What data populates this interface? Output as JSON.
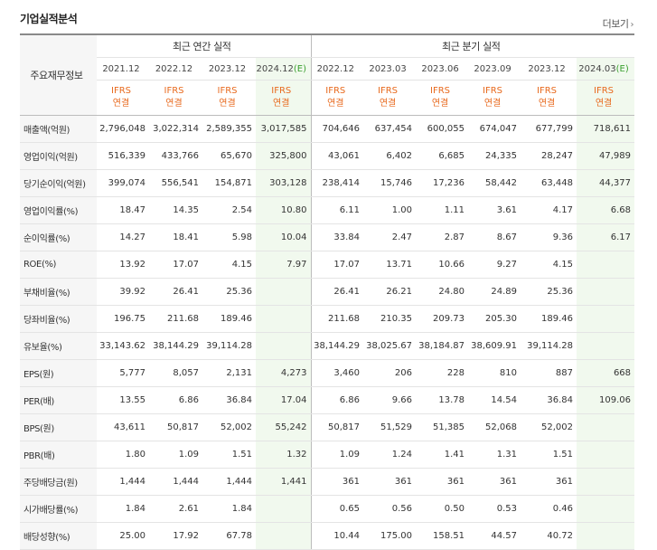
{
  "title": "기업실적분석",
  "more_label": "더보기",
  "header": {
    "row_label": "주요재무정보",
    "annual_group": "최근 연간 실적",
    "quarter_group": "최근 분기 실적",
    "ifrs_top": "IFRS",
    "ifrs_bottom": "연결",
    "periods": [
      {
        "text": "2021.12",
        "est": ""
      },
      {
        "text": "2022.12",
        "est": ""
      },
      {
        "text": "2023.12",
        "est": ""
      },
      {
        "text": "2024.12",
        "est": "(E)"
      },
      {
        "text": "2022.12",
        "est": ""
      },
      {
        "text": "2023.03",
        "est": ""
      },
      {
        "text": "2023.06",
        "est": ""
      },
      {
        "text": "2023.09",
        "est": ""
      },
      {
        "text": "2023.12",
        "est": ""
      },
      {
        "text": "2024.03",
        "est": "(E)"
      }
    ]
  },
  "rows": [
    {
      "label": "매출액(억원)",
      "values": [
        "2,796,048",
        "3,022,314",
        "2,589,355",
        "3,017,585",
        "704,646",
        "637,454",
        "600,055",
        "674,047",
        "677,799",
        "718,611"
      ]
    },
    {
      "label": "영업이익(억원)",
      "values": [
        "516,339",
        "433,766",
        "65,670",
        "325,800",
        "43,061",
        "6,402",
        "6,685",
        "24,335",
        "28,247",
        "47,989"
      ]
    },
    {
      "label": "당기순이익(억원)",
      "values": [
        "399,074",
        "556,541",
        "154,871",
        "303,128",
        "238,414",
        "15,746",
        "17,236",
        "58,442",
        "63,448",
        "44,377"
      ]
    },
    {
      "label": "영업이익률(%)",
      "values": [
        "18.47",
        "14.35",
        "2.54",
        "10.80",
        "6.11",
        "1.00",
        "1.11",
        "3.61",
        "4.17",
        "6.68"
      ]
    },
    {
      "label": "순이익률(%)",
      "values": [
        "14.27",
        "18.41",
        "5.98",
        "10.04",
        "33.84",
        "2.47",
        "2.87",
        "8.67",
        "9.36",
        "6.17"
      ]
    },
    {
      "label": "ROE(%)",
      "values": [
        "13.92",
        "17.07",
        "4.15",
        "7.97",
        "17.07",
        "13.71",
        "10.66",
        "9.27",
        "4.15",
        ""
      ]
    },
    {
      "label": "부채비율(%)",
      "values": [
        "39.92",
        "26.41",
        "25.36",
        "",
        "26.41",
        "26.21",
        "24.80",
        "24.89",
        "25.36",
        ""
      ]
    },
    {
      "label": "당좌비율(%)",
      "values": [
        "196.75",
        "211.68",
        "189.46",
        "",
        "211.68",
        "210.35",
        "209.73",
        "205.30",
        "189.46",
        ""
      ]
    },
    {
      "label": "유보율(%)",
      "values": [
        "33,143.62",
        "38,144.29",
        "39,114.28",
        "",
        "38,144.29",
        "38,025.67",
        "38,184.87",
        "38,609.91",
        "39,114.28",
        ""
      ]
    },
    {
      "label": "EPS(원)",
      "values": [
        "5,777",
        "8,057",
        "2,131",
        "4,273",
        "3,460",
        "206",
        "228",
        "810",
        "887",
        "668"
      ]
    },
    {
      "label": "PER(배)",
      "values": [
        "13.55",
        "6.86",
        "36.84",
        "17.04",
        "6.86",
        "9.66",
        "13.78",
        "14.54",
        "36.84",
        "109.06"
      ]
    },
    {
      "label": "BPS(원)",
      "values": [
        "43,611",
        "50,817",
        "52,002",
        "55,242",
        "50,817",
        "51,529",
        "51,385",
        "52,068",
        "52,002",
        ""
      ]
    },
    {
      "label": "PBR(배)",
      "values": [
        "1.80",
        "1.09",
        "1.51",
        "1.32",
        "1.09",
        "1.24",
        "1.41",
        "1.31",
        "1.51",
        ""
      ]
    },
    {
      "label": "주당배당금(원)",
      "values": [
        "1,444",
        "1,444",
        "1,444",
        "1,441",
        "361",
        "361",
        "361",
        "361",
        "361",
        ""
      ]
    },
    {
      "label": "시가배당률(%)",
      "values": [
        "1.84",
        "2.61",
        "1.84",
        "",
        "0.65",
        "0.56",
        "0.50",
        "0.53",
        "0.46",
        ""
      ]
    },
    {
      "label": "배당성향(%)",
      "values": [
        "25.00",
        "17.92",
        "67.78",
        "",
        "10.44",
        "175.00",
        "158.51",
        "44.57",
        "40.72",
        ""
      ]
    }
  ]
}
